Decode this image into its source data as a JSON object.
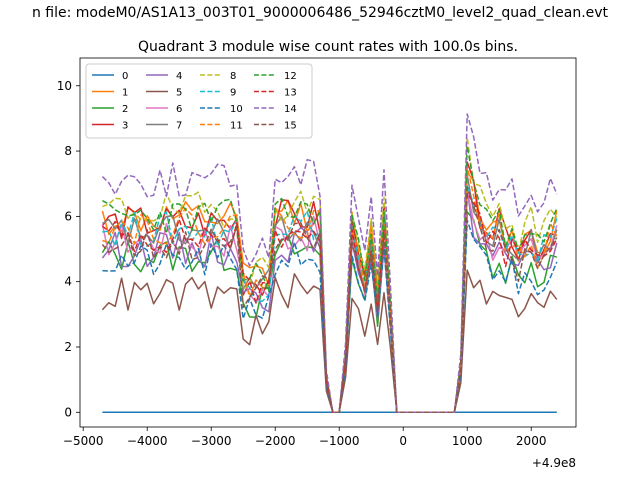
{
  "figure": {
    "suptitle": "n file: modeM0/AS1A13_003T01_9000006486_52946cztM0_level2_quad_clean.evt",
    "title": "Quadrant 3 module wise count rates with 100.0s bins."
  },
  "chart_data": {
    "type": "line",
    "title": "Quadrant 3 module wise count rates with 100.0s bins.",
    "xlabel": "",
    "ylabel": "",
    "x_offset_label": "+4.9e8",
    "xlim": [
      -5050,
      2700
    ],
    "ylim": [
      -0.45,
      10.85
    ],
    "xticks": [
      -5000,
      -4000,
      -3000,
      -2000,
      -1000,
      0,
      1000,
      2000
    ],
    "xtick_labels": [
      "−5000",
      "−4000",
      "−3000",
      "−2000",
      "−1000",
      "0",
      "1000",
      "2000"
    ],
    "yticks": [
      0,
      2,
      4,
      6,
      8,
      10
    ],
    "ytick_labels": [
      "0",
      "2",
      "4",
      "6",
      "8",
      "10"
    ],
    "grid": false,
    "legend_placement": "top-left",
    "legend_columns": 4,
    "x": [
      -4700,
      -4600,
      -4500,
      -4400,
      -4300,
      -4200,
      -4100,
      -4000,
      -3900,
      -3800,
      -3700,
      -3600,
      -3500,
      -3400,
      -3300,
      -3200,
      -3100,
      -3000,
      -2900,
      -2800,
      -2700,
      -2600,
      -2500,
      -2400,
      -2300,
      -2200,
      -2100,
      -2000,
      -1900,
      -1800,
      -1700,
      -1600,
      -1500,
      -1400,
      -1300,
      -1200,
      -1100,
      -1000,
      -900,
      -800,
      -700,
      -600,
      -500,
      -400,
      -300,
      -200,
      -100,
      0,
      100,
      200,
      300,
      400,
      500,
      600,
      700,
      800,
      900,
      1000,
      1100,
      1200,
      1300,
      1400,
      1500,
      1600,
      1700,
      1800,
      1900,
      2000,
      2100,
      2200,
      2300,
      2400
    ],
    "segments": [
      {
        "from": -4700,
        "to": -1300,
        "shape": "noisy"
      },
      {
        "from": -1200,
        "to": -1000,
        "shape": "drop",
        "factors": [
          0.18,
          0,
          0
        ]
      },
      {
        "from": -900,
        "to": -200,
        "shape": "peaks",
        "factors": [
          0.3,
          1.0,
          0.85,
          0.7,
          0.95,
          0.6,
          1.05,
          0.55
        ]
      },
      {
        "from": -100,
        "to": 800,
        "shape": "zero"
      },
      {
        "from": 900,
        "to": 2400,
        "shape": "rise",
        "factors": [
          0.25,
          1.3,
          1.15,
          1.05,
          1.0,
          0.95,
          1.0,
          0.9,
          0.95,
          0.85,
          0.9,
          0.95,
          0.85,
          0.9,
          0.95,
          1.0
        ]
      }
    ],
    "series": [
      {
        "name": "0",
        "color": "#1f77b4",
        "dashed": false,
        "level": 0.0,
        "seed": 11
      },
      {
        "name": "1",
        "color": "#ff7f0e",
        "dashed": false,
        "level": 5.9,
        "seed": 12
      },
      {
        "name": "2",
        "color": "#2ca02c",
        "dashed": false,
        "level": 4.8,
        "seed": 13
      },
      {
        "name": "3",
        "color": "#d62728",
        "dashed": false,
        "level": 5.8,
        "seed": 14
      },
      {
        "name": "4",
        "color": "#9467bd",
        "dashed": false,
        "level": 5.0,
        "seed": 15
      },
      {
        "name": "5",
        "color": "#8c564b",
        "dashed": false,
        "level": 3.6,
        "seed": 16
      },
      {
        "name": "6",
        "color": "#e377c2",
        "dashed": false,
        "level": 5.3,
        "seed": 17
      },
      {
        "name": "7",
        "color": "#7f7f7f",
        "dashed": false,
        "level": 5.5,
        "seed": 18
      },
      {
        "name": "8",
        "color": "#bcbd22",
        "dashed": true,
        "level": 6.2,
        "seed": 19
      },
      {
        "name": "9",
        "color": "#17becf",
        "dashed": true,
        "level": 5.6,
        "seed": 20
      },
      {
        "name": "10",
        "color": "#1f77b4",
        "dashed": true,
        "level": 4.6,
        "seed": 21
      },
      {
        "name": "11",
        "color": "#ff7f0e",
        "dashed": true,
        "level": 5.7,
        "seed": 22
      },
      {
        "name": "12",
        "color": "#2ca02c",
        "dashed": true,
        "level": 6.0,
        "seed": 23
      },
      {
        "name": "13",
        "color": "#d62728",
        "dashed": true,
        "level": 5.4,
        "seed": 24
      },
      {
        "name": "14",
        "color": "#9467bd",
        "dashed": true,
        "level": 7.1,
        "seed": 25
      },
      {
        "name": "15",
        "color": "#8c564b",
        "dashed": true,
        "level": 5.2,
        "seed": 26
      }
    ]
  }
}
